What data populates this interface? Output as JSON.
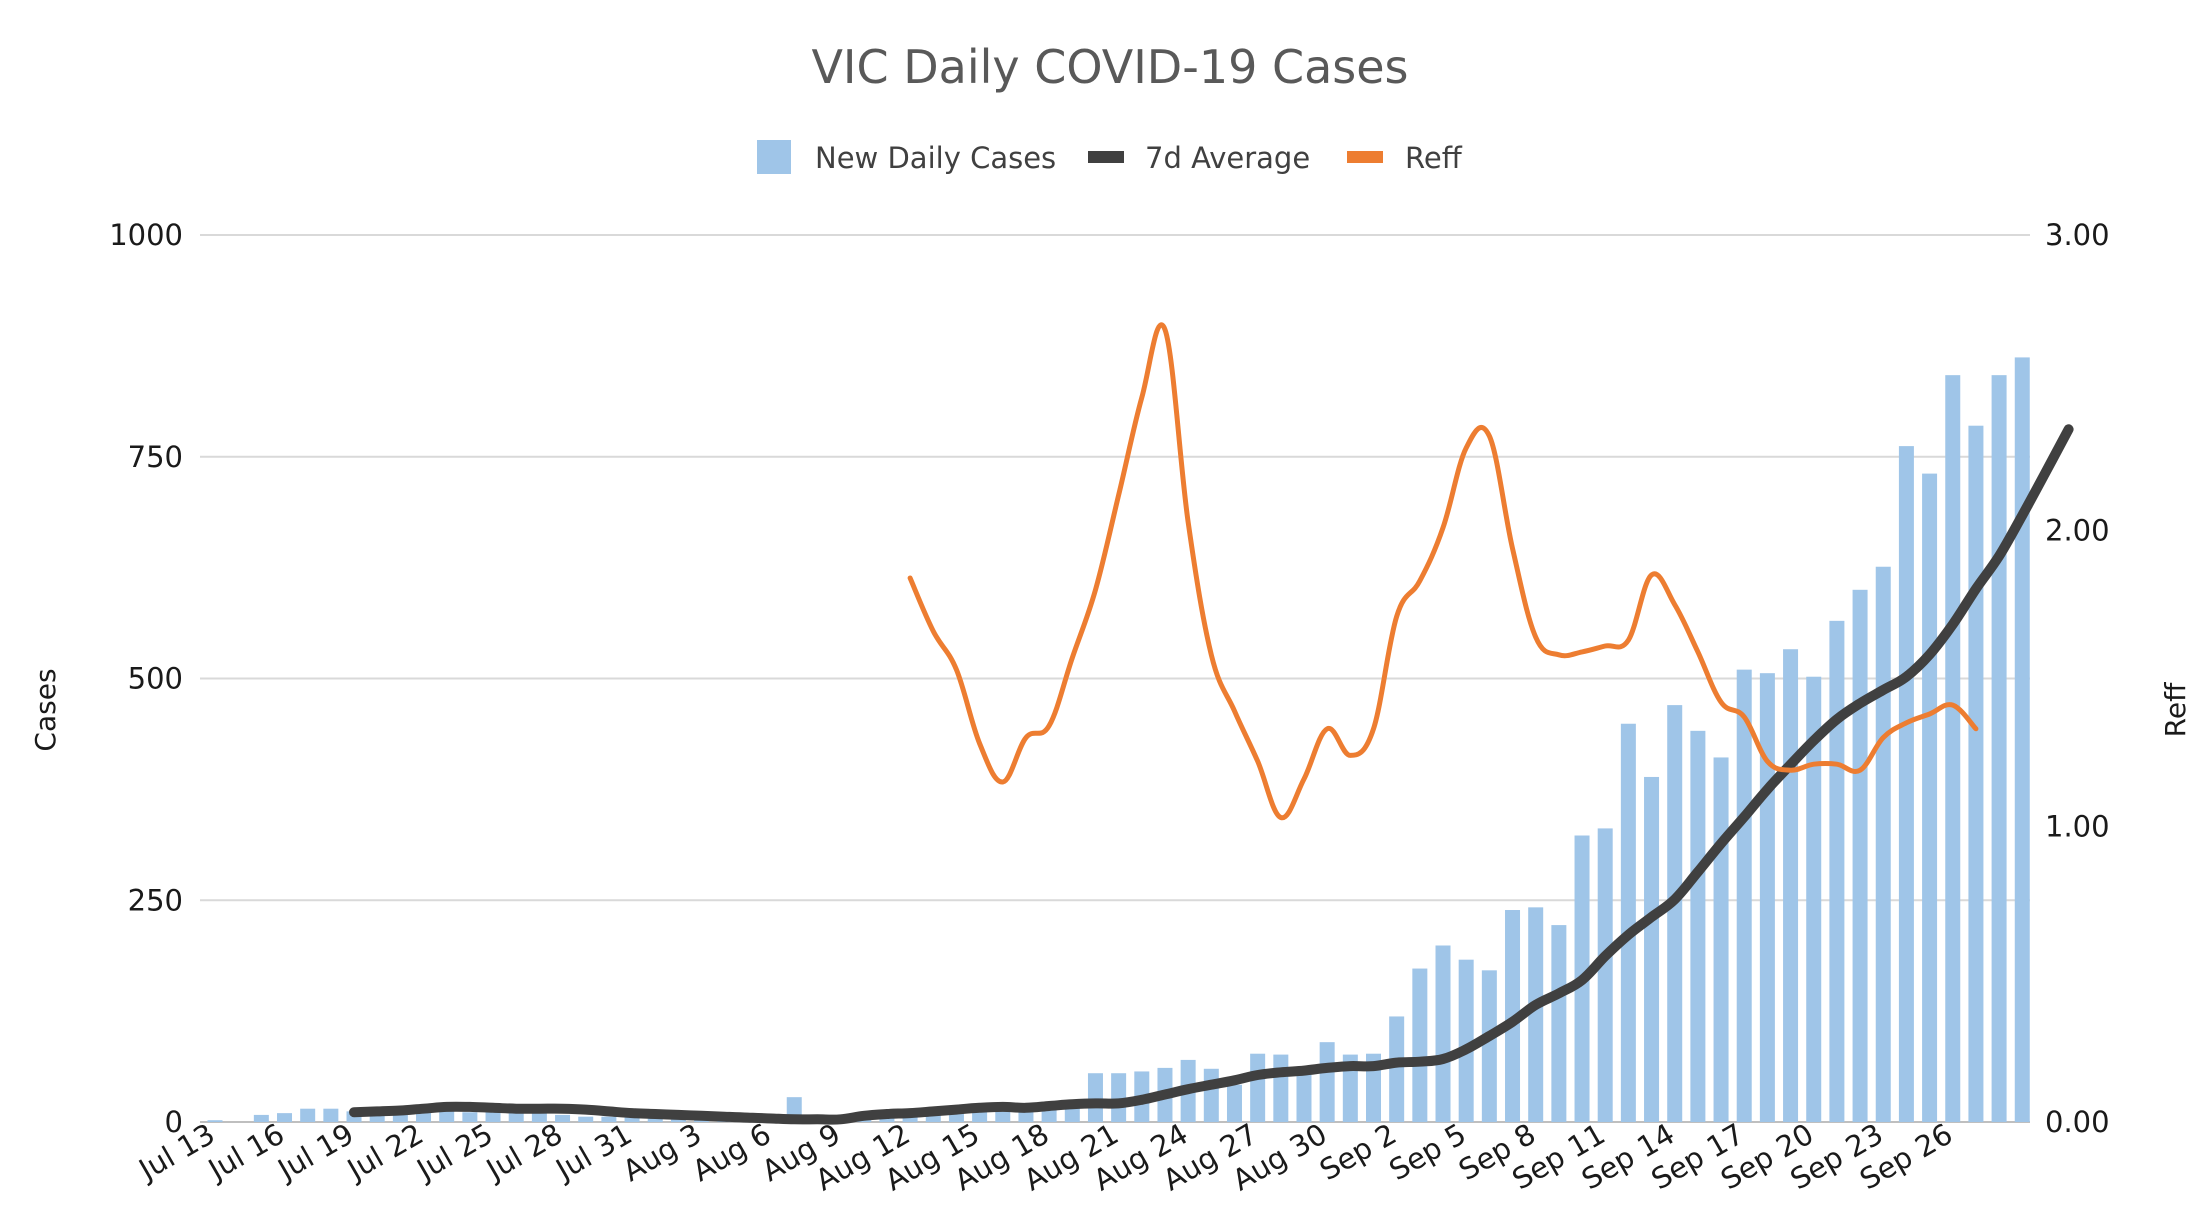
{
  "chart_data": {
    "type": "bar+line",
    "title": "VIC Daily COVID-19 Cases",
    "legend": {
      "placement": "top-center",
      "entries": [
        "New Daily Cases",
        "7d Average",
        "Reff"
      ]
    },
    "colors": {
      "bars": "#9fc5e8",
      "avg": "#404040",
      "reff": "#ed7d31",
      "grid": "#d9d9d9",
      "title": "#595959"
    },
    "ylabel": "Cases",
    "y2label": "Reff",
    "ylim": [
      0,
      1000
    ],
    "y2lim": [
      0,
      3
    ],
    "yticks": [
      "0",
      "250",
      "500",
      "750",
      "1000"
    ],
    "y2ticks": [
      "0.00",
      "1.00",
      "2.00",
      "3.00"
    ],
    "xtick_labels": [
      "Jul 13",
      "Jul 16",
      "Jul 19",
      "Jul 22",
      "Jul 25",
      "Jul 28",
      "Jul 31",
      "Aug 3",
      "Aug 6",
      "Aug 9",
      "Aug 12",
      "Aug 15",
      "Aug 18",
      "Aug 21",
      "Aug 24",
      "Aug 27",
      "Aug 30",
      "Sep 2",
      "Sep 5",
      "Sep 8",
      "Sep 11",
      "Sep 14",
      "Sep 17",
      "Sep 20",
      "Sep 23",
      "Sep 26"
    ],
    "grid": true,
    "series": [
      {
        "name": "New Daily Cases",
        "type": "bar",
        "start_date": "Jul 13",
        "values": [
          2,
          0,
          8,
          10,
          15,
          15,
          12,
          12,
          13,
          12,
          12,
          11,
          12,
          11,
          10,
          8,
          6,
          6,
          5,
          4,
          3,
          2,
          1,
          1,
          2,
          28,
          5,
          5,
          6,
          8,
          12,
          11,
          14,
          16,
          17,
          18,
          19,
          20,
          55,
          55,
          57,
          61,
          70,
          60,
          42,
          77,
          76,
          62,
          90,
          76,
          77,
          119,
          173,
          199,
          183,
          171,
          239,
          242,
          222,
          323,
          331,
          449,
          389,
          470,
          441,
          411,
          510,
          506,
          533,
          502,
          565,
          600,
          626,
          762,
          731,
          842,
          785,
          842,
          862
        ]
      },
      {
        "name": "7d Average",
        "type": "line",
        "start_date": "Jul 19",
        "values": [
          11,
          12,
          13,
          15,
          17,
          17,
          16,
          15,
          15,
          15,
          14,
          12,
          10,
          9,
          8,
          7,
          6,
          5,
          4,
          3,
          3,
          3,
          7,
          9,
          10,
          12,
          14,
          16,
          17,
          16,
          18,
          20,
          21,
          21,
          25,
          31,
          37,
          42,
          47,
          53,
          56,
          58,
          61,
          63,
          63,
          67,
          68,
          71,
          82,
          97,
          113,
          132,
          145,
          160,
          187,
          211,
          231,
          251,
          282,
          314,
          344,
          375,
          403,
          430,
          454,
          472,
          487,
          502,
          527,
          561,
          601,
          638,
          684,
          732,
          781
        ]
      },
      {
        "name": "Reff",
        "type": "line",
        "axis": "secondary",
        "start_date": "Aug 12",
        "values": [
          1.84,
          1.66,
          1.53,
          1.28,
          1.15,
          1.3,
          1.34,
          1.57,
          1.8,
          2.12,
          2.45,
          2.68,
          2.03,
          1.58,
          1.39,
          1.22,
          1.03,
          1.16,
          1.33,
          1.24,
          1.33,
          1.71,
          1.83,
          2.01,
          2.28,
          2.32,
          1.94,
          1.64,
          1.58,
          1.59,
          1.61,
          1.63,
          1.85,
          1.75,
          1.59,
          1.42,
          1.37,
          1.22,
          1.19,
          1.21,
          1.21,
          1.19,
          1.3,
          1.35,
          1.38,
          1.41,
          1.33
        ]
      }
    ]
  }
}
